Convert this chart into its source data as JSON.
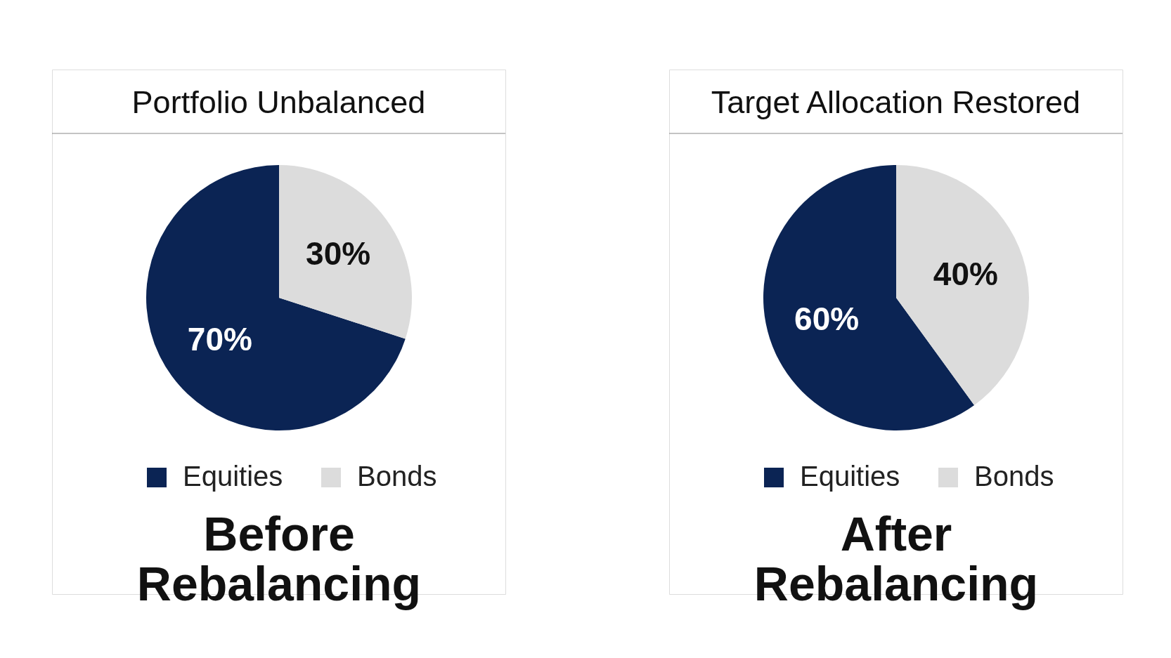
{
  "chart_data": [
    {
      "type": "pie",
      "title": "Portfolio Unbalanced",
      "categories": [
        "Equities",
        "Bonds"
      ],
      "values": [
        70,
        30
      ],
      "colors": [
        "#0b2454",
        "#dcdcdc"
      ],
      "value_labels": [
        "70%",
        "30%"
      ],
      "legend": "bottom",
      "annotations": [
        "Before Rebalancing"
      ]
    },
    {
      "type": "pie",
      "title": "Target Allocation Restored",
      "categories": [
        "Equities",
        "Bonds"
      ],
      "values": [
        60,
        40
      ],
      "colors": [
        "#0b2454",
        "#dcdcdc"
      ],
      "value_labels": [
        "60%",
        "40%"
      ],
      "legend": "bottom",
      "annotations": [
        "After Rebalancing"
      ]
    }
  ]
}
